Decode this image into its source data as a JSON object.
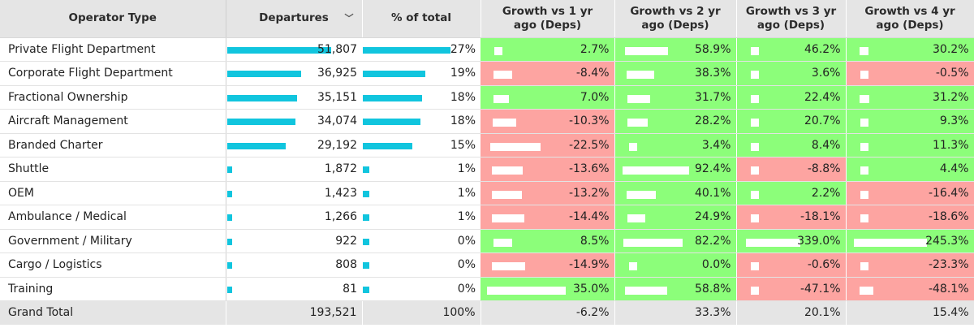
{
  "headers": {
    "operator": "Operator Type",
    "departures": "Departures",
    "pct": "% of total",
    "g1": "Growth vs 1 yr ago (Deps)",
    "g2": "Growth vs 2 yr ago (Deps)",
    "g3": "Growth vs 3 yr ago (Deps)",
    "g4": "Growth vs 4 yr ago (Deps)",
    "sort_icon": "chevron-down-icon"
  },
  "colors": {
    "positive": "#8cfe7a",
    "negative": "#fda4a1",
    "bar": "#11c5de",
    "header": "#e5e5e5"
  },
  "rows": [
    {
      "name": "Private Flight Department",
      "departures": 51807,
      "departures_text": "51,807",
      "pct": 27,
      "pct_text": "27%",
      "growth": [
        2.7,
        58.9,
        46.2,
        30.2
      ],
      "growth_text": [
        "2.7%",
        "58.9%",
        "46.2%",
        "30.2%"
      ]
    },
    {
      "name": "Corporate Flight Department",
      "departures": 36925,
      "departures_text": "36,925",
      "pct": 19,
      "pct_text": "19%",
      "growth": [
        -8.4,
        38.3,
        3.6,
        -0.5
      ],
      "growth_text": [
        "-8.4%",
        "38.3%",
        "3.6%",
        "-0.5%"
      ]
    },
    {
      "name": "Fractional Ownership",
      "departures": 35151,
      "departures_text": "35,151",
      "pct": 18,
      "pct_text": "18%",
      "growth": [
        7.0,
        31.7,
        22.4,
        31.2
      ],
      "growth_text": [
        "7.0%",
        "31.7%",
        "22.4%",
        "31.2%"
      ]
    },
    {
      "name": "Aircraft Management",
      "departures": 34074,
      "departures_text": "34,074",
      "pct": 18,
      "pct_text": "18%",
      "growth": [
        -10.3,
        28.2,
        20.7,
        9.3
      ],
      "growth_text": [
        "-10.3%",
        "28.2%",
        "20.7%",
        "9.3%"
      ]
    },
    {
      "name": "Branded Charter",
      "departures": 29192,
      "departures_text": "29,192",
      "pct": 15,
      "pct_text": "15%",
      "growth": [
        -22.5,
        3.4,
        8.4,
        11.3
      ],
      "growth_text": [
        "-22.5%",
        "3.4%",
        "8.4%",
        "11.3%"
      ]
    },
    {
      "name": "Shuttle",
      "departures": 1872,
      "departures_text": "1,872",
      "pct": 1,
      "pct_text": "1%",
      "growth": [
        -13.6,
        92.4,
        -8.8,
        4.4
      ],
      "growth_text": [
        "-13.6%",
        "92.4%",
        "-8.8%",
        "4.4%"
      ]
    },
    {
      "name": "OEM",
      "departures": 1423,
      "departures_text": "1,423",
      "pct": 1,
      "pct_text": "1%",
      "growth": [
        -13.2,
        40.1,
        2.2,
        -16.4
      ],
      "growth_text": [
        "-13.2%",
        "40.1%",
        "2.2%",
        "-16.4%"
      ]
    },
    {
      "name": "Ambulance / Medical",
      "departures": 1266,
      "departures_text": "1,266",
      "pct": 1,
      "pct_text": "1%",
      "growth": [
        -14.4,
        24.9,
        -18.1,
        -18.6
      ],
      "growth_text": [
        "-14.4%",
        "24.9%",
        "-18.1%",
        "-18.6%"
      ]
    },
    {
      "name": "Government / Military",
      "departures": 922,
      "departures_text": "922",
      "pct": 0,
      "pct_text": "0%",
      "growth": [
        8.5,
        82.2,
        339.0,
        245.3
      ],
      "growth_text": [
        "8.5%",
        "82.2%",
        "339.0%",
        "245.3%"
      ]
    },
    {
      "name": "Cargo / Logistics",
      "departures": 808,
      "departures_text": "808",
      "pct": 0,
      "pct_text": "0%",
      "growth": [
        -14.9,
        0.0,
        -0.6,
        -23.3
      ],
      "growth_text": [
        "-14.9%",
        "0.0%",
        "-0.6%",
        "-23.3%"
      ]
    },
    {
      "name": "Training",
      "departures": 81,
      "departures_text": "81",
      "pct": 0,
      "pct_text": "0%",
      "growth": [
        35.0,
        58.8,
        -47.1,
        -48.1
      ],
      "growth_text": [
        "35.0%",
        "58.8%",
        "-47.1%",
        "-48.1%"
      ]
    }
  ],
  "total": {
    "name": "Grand Total",
    "departures_text": "193,521",
    "pct_text": "100%",
    "growth_text": [
      "-6.2%",
      "33.3%",
      "20.1%",
      "15.4%"
    ]
  }
}
